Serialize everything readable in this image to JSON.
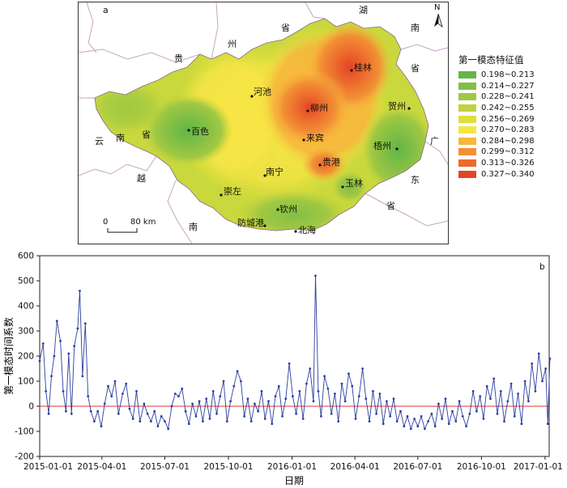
{
  "map": {
    "panel_label": "a",
    "scale_label_0": "0",
    "scale_label_km": "80 km",
    "north_label": "N",
    "legend_title": "第一模态特征值",
    "legend": [
      {
        "label": "0.198~0.213",
        "color": "#63b648"
      },
      {
        "label": "0.214~0.227",
        "color": "#82bf45"
      },
      {
        "label": "0.228~0.241",
        "color": "#a0c843"
      },
      {
        "label": "0.242~0.255",
        "color": "#bfd23f"
      },
      {
        "label": "0.256~0.269",
        "color": "#dfde3c"
      },
      {
        "label": "0.270~0.283",
        "color": "#f6e545"
      },
      {
        "label": "0.284~0.298",
        "color": "#f7b73c"
      },
      {
        "label": "0.299~0.312",
        "color": "#f29035"
      },
      {
        "label": "0.313~0.326",
        "color": "#ec6a2d"
      },
      {
        "label": "0.327~0.340",
        "color": "#e44525"
      }
    ],
    "cities": [
      "桂林",
      "河池",
      "柳州",
      "贺州",
      "百色",
      "来宾",
      "梧州",
      "贵港",
      "南宁",
      "玉林",
      "崇左",
      "钦州",
      "防城港",
      "北海"
    ],
    "region_chars": {
      "gui": "贵",
      "zhou": "州",
      "hu": "湖",
      "nan1": "南",
      "sheng1": "省",
      "yun": "云",
      "nan2": "南",
      "sheng2": "省",
      "sheng3": "省",
      "guang": "广",
      "dong": "东",
      "sheng4": "省",
      "yue": "越",
      "nan3": "南"
    }
  },
  "chart_data": {
    "type": "line",
    "panel_label": "b",
    "xlabel": "日期",
    "ylabel": "第一模态时间系数",
    "ylim": [
      -200,
      600
    ],
    "yticks": [
      -200,
      -100,
      0,
      100,
      200,
      300,
      400,
      500,
      600
    ],
    "xticks": [
      "2015-01-01",
      "2015-04-01",
      "2015-07-01",
      "2015-10-01",
      "2016-01-01",
      "2016-04-01",
      "2016-07-01",
      "2016-10-01",
      "2017-01-01"
    ],
    "reference_line": {
      "y": 0,
      "color": "#e03030"
    },
    "series": [
      {
        "color": "#2b3f9e",
        "points": [
          [
            "2015-01-01",
            180
          ],
          [
            "2015-01-06",
            250
          ],
          [
            "2015-01-10",
            60
          ],
          [
            "2015-01-14",
            -30
          ],
          [
            "2015-01-18",
            120
          ],
          [
            "2015-01-22",
            200
          ],
          [
            "2015-01-26",
            340
          ],
          [
            "2015-01-31",
            260
          ],
          [
            "2015-02-04",
            60
          ],
          [
            "2015-02-08",
            -20
          ],
          [
            "2015-02-12",
            210
          ],
          [
            "2015-02-16",
            -30
          ],
          [
            "2015-02-20",
            240
          ],
          [
            "2015-02-25",
            310
          ],
          [
            "2015-02-28",
            460
          ],
          [
            "2015-03-04",
            120
          ],
          [
            "2015-03-08",
            330
          ],
          [
            "2015-03-12",
            40
          ],
          [
            "2015-03-16",
            -20
          ],
          [
            "2015-03-21",
            -60
          ],
          [
            "2015-03-26",
            -20
          ],
          [
            "2015-03-31",
            -80
          ],
          [
            "2015-04-05",
            10
          ],
          [
            "2015-04-10",
            80
          ],
          [
            "2015-04-15",
            40
          ],
          [
            "2015-04-20",
            100
          ],
          [
            "2015-04-25",
            -30
          ],
          [
            "2015-05-01",
            50
          ],
          [
            "2015-05-06",
            90
          ],
          [
            "2015-05-11",
            -10
          ],
          [
            "2015-05-16",
            -50
          ],
          [
            "2015-05-21",
            60
          ],
          [
            "2015-05-26",
            -60
          ],
          [
            "2015-06-01",
            10
          ],
          [
            "2015-06-06",
            -30
          ],
          [
            "2015-06-11",
            -60
          ],
          [
            "2015-06-16",
            -20
          ],
          [
            "2015-06-21",
            -80
          ],
          [
            "2015-06-26",
            -40
          ],
          [
            "2015-07-01",
            -60
          ],
          [
            "2015-07-06",
            -90
          ],
          [
            "2015-07-11",
            0
          ],
          [
            "2015-07-16",
            50
          ],
          [
            "2015-07-21",
            40
          ],
          [
            "2015-07-26",
            70
          ],
          [
            "2015-07-31",
            -20
          ],
          [
            "2015-08-05",
            -70
          ],
          [
            "2015-08-10",
            10
          ],
          [
            "2015-08-15",
            -40
          ],
          [
            "2015-08-20",
            20
          ],
          [
            "2015-08-25",
            -60
          ],
          [
            "2015-08-30",
            30
          ],
          [
            "2015-09-04",
            -50
          ],
          [
            "2015-09-09",
            60
          ],
          [
            "2015-09-14",
            -30
          ],
          [
            "2015-09-19",
            40
          ],
          [
            "2015-09-24",
            100
          ],
          [
            "2015-09-29",
            -60
          ],
          [
            "2015-10-04",
            20
          ],
          [
            "2015-10-09",
            80
          ],
          [
            "2015-10-14",
            140
          ],
          [
            "2015-10-19",
            100
          ],
          [
            "2015-10-24",
            -40
          ],
          [
            "2015-10-29",
            30
          ],
          [
            "2015-11-03",
            -60
          ],
          [
            "2015-11-08",
            10
          ],
          [
            "2015-11-13",
            -20
          ],
          [
            "2015-11-18",
            60
          ],
          [
            "2015-11-23",
            -50
          ],
          [
            "2015-11-28",
            20
          ],
          [
            "2015-12-03",
            -70
          ],
          [
            "2015-12-08",
            40
          ],
          [
            "2015-12-13",
            80
          ],
          [
            "2015-12-18",
            -40
          ],
          [
            "2015-12-23",
            30
          ],
          [
            "2015-12-28",
            170
          ],
          [
            "2016-01-02",
            40
          ],
          [
            "2016-01-07",
            -30
          ],
          [
            "2016-01-12",
            60
          ],
          [
            "2016-01-17",
            -50
          ],
          [
            "2016-01-22",
            90
          ],
          [
            "2016-01-27",
            150
          ],
          [
            "2016-02-01",
            20
          ],
          [
            "2016-02-04",
            520
          ],
          [
            "2016-02-08",
            60
          ],
          [
            "2016-02-12",
            -40
          ],
          [
            "2016-02-17",
            120
          ],
          [
            "2016-02-22",
            70
          ],
          [
            "2016-02-27",
            -30
          ],
          [
            "2016-03-03",
            50
          ],
          [
            "2016-03-08",
            -60
          ],
          [
            "2016-03-13",
            90
          ],
          [
            "2016-03-18",
            20
          ],
          [
            "2016-03-23",
            130
          ],
          [
            "2016-03-28",
            80
          ],
          [
            "2016-04-02",
            -50
          ],
          [
            "2016-04-07",
            40
          ],
          [
            "2016-04-12",
            150
          ],
          [
            "2016-04-17",
            30
          ],
          [
            "2016-04-22",
            -60
          ],
          [
            "2016-04-27",
            60
          ],
          [
            "2016-05-02",
            -30
          ],
          [
            "2016-05-07",
            50
          ],
          [
            "2016-05-12",
            -70
          ],
          [
            "2016-05-17",
            20
          ],
          [
            "2016-05-22",
            -40
          ],
          [
            "2016-05-27",
            30
          ],
          [
            "2016-06-01",
            -60
          ],
          [
            "2016-06-06",
            -20
          ],
          [
            "2016-06-11",
            -80
          ],
          [
            "2016-06-16",
            -40
          ],
          [
            "2016-06-21",
            -90
          ],
          [
            "2016-06-26",
            -50
          ],
          [
            "2016-07-01",
            -80
          ],
          [
            "2016-07-06",
            -40
          ],
          [
            "2016-07-11",
            -90
          ],
          [
            "2016-07-16",
            -60
          ],
          [
            "2016-07-21",
            -30
          ],
          [
            "2016-07-26",
            -80
          ],
          [
            "2016-07-31",
            10
          ],
          [
            "2016-08-05",
            -50
          ],
          [
            "2016-08-10",
            30
          ],
          [
            "2016-08-15",
            -70
          ],
          [
            "2016-08-20",
            -20
          ],
          [
            "2016-08-25",
            -60
          ],
          [
            "2016-08-30",
            20
          ],
          [
            "2016-09-04",
            -40
          ],
          [
            "2016-09-09",
            -80
          ],
          [
            "2016-09-14",
            -30
          ],
          [
            "2016-09-19",
            60
          ],
          [
            "2016-09-24",
            -20
          ],
          [
            "2016-09-29",
            40
          ],
          [
            "2016-10-04",
            -50
          ],
          [
            "2016-10-09",
            80
          ],
          [
            "2016-10-14",
            30
          ],
          [
            "2016-10-19",
            110
          ],
          [
            "2016-10-24",
            -30
          ],
          [
            "2016-10-29",
            60
          ],
          [
            "2016-11-03",
            -60
          ],
          [
            "2016-11-08",
            20
          ],
          [
            "2016-11-13",
            90
          ],
          [
            "2016-11-18",
            -40
          ],
          [
            "2016-11-23",
            50
          ],
          [
            "2016-11-28",
            -70
          ],
          [
            "2016-12-03",
            100
          ],
          [
            "2016-12-08",
            20
          ],
          [
            "2016-12-13",
            170
          ],
          [
            "2016-12-18",
            60
          ],
          [
            "2016-12-23",
            210
          ],
          [
            "2016-12-28",
            100
          ],
          [
            "2017-01-02",
            150
          ],
          [
            "2017-01-05",
            -70
          ],
          [
            "2017-01-08",
            190
          ]
        ]
      }
    ]
  }
}
